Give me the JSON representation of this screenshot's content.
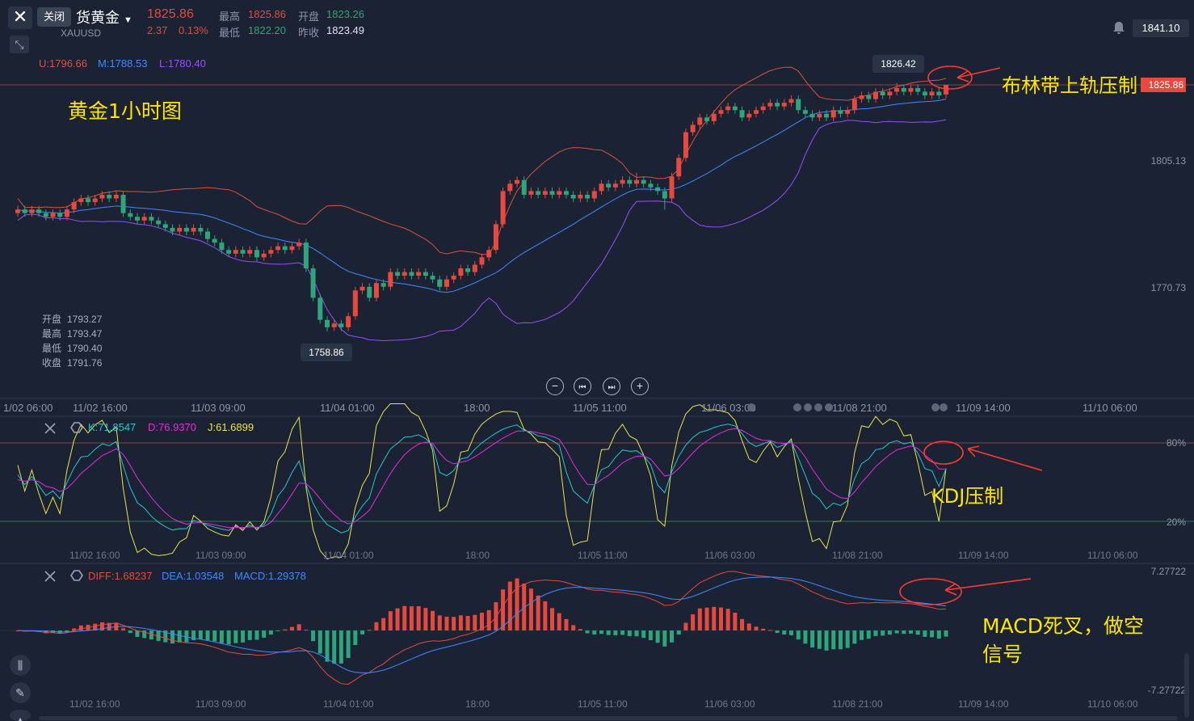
{
  "header": {
    "close_label": "关闭",
    "title": "货黄金",
    "symbol": "XAUUSD",
    "price": "1825.86",
    "change": "2.37",
    "change_pct": "0.13%",
    "high_label": "最高",
    "high": "1825.86",
    "low_label": "最低",
    "low": "1822.20",
    "open_label": "开盘",
    "open": "1823.26",
    "prev_label": "昨收",
    "prev": "1823.49",
    "right_price": "1841.10"
  },
  "boll": {
    "u": "U:1796.66",
    "m": "M:1788.53",
    "l": "L:1780.40"
  },
  "ohlc": {
    "open_label": "开盘",
    "open": "1793.27",
    "high_label": "最高",
    "high": "1793.47",
    "low_label": "最低",
    "low": "1790.40",
    "close_label": "收盘",
    "close": "1791.76"
  },
  "kdj": {
    "k": "K:71.8547",
    "d": "D:76.9370",
    "j": "J:61.6899"
  },
  "macd": {
    "diff": "DIFF:1.68237",
    "dea": "DEA:1.03548",
    "macd": "MACD:1.29378"
  },
  "annotations": {
    "chart_title": "黄金1小时图",
    "boll_note": "布林带上轨压制",
    "kdj_note": "KDJ压制",
    "macd_note_1": "MACD死叉，做空",
    "macd_note_2": "信号"
  },
  "colors": {
    "bg": "#1b2233",
    "up": "#e8493e",
    "down": "#2ea57a",
    "upper": "#d9533f",
    "mid": "#3d8bff",
    "lower": "#9b4dff",
    "k": "#20c7d4",
    "d": "#e02ee0",
    "j": "#e9e34a",
    "annotation": "#ffe600",
    "arrow": "#ff3b30",
    "diff": "#e8493e",
    "dea": "#3d8bff"
  },
  "chart_data": [
    {
      "type": "candlestick",
      "title": "黄金1小时图",
      "series_names": [
        "U",
        "M",
        "L"
      ],
      "y_ticks": [
        1805.13,
        1770.73
      ],
      "current_price": 1825.86,
      "max_label": 1826.42,
      "min_label": 1758.86,
      "x_ticks": [
        "1/02 06:00",
        "11/02 16:00",
        "11/03 09:00",
        "11/04 01:00",
        "18:00",
        "11/05 11:00",
        "11/06 03:00",
        "11/08 21:00",
        "11/09 14:00",
        "11/10 06:00"
      ],
      "candles": [
        [
          1791,
          1792,
          1790,
          1793
        ],
        [
          1792,
          1791,
          1790,
          1793
        ],
        [
          1791,
          1792,
          1790,
          1793
        ],
        [
          1792,
          1791,
          1790,
          1793
        ],
        [
          1791,
          1790,
          1789,
          1792
        ],
        [
          1790,
          1791,
          1789,
          1792
        ],
        [
          1791,
          1790,
          1789,
          1792
        ],
        [
          1790,
          1792,
          1789,
          1793
        ],
        [
          1792,
          1794,
          1791,
          1795
        ],
        [
          1794,
          1795,
          1793,
          1796
        ],
        [
          1795,
          1794,
          1793,
          1796
        ],
        [
          1794,
          1795,
          1793,
          1796
        ],
        [
          1795,
          1796,
          1794,
          1797
        ],
        [
          1796,
          1795,
          1794,
          1797
        ],
        [
          1795,
          1796,
          1794,
          1797
        ],
        [
          1796,
          1791,
          1790,
          1797
        ],
        [
          1791,
          1790,
          1789,
          1792
        ],
        [
          1790,
          1789,
          1788,
          1791
        ],
        [
          1789,
          1790,
          1788,
          1791
        ],
        [
          1790,
          1789,
          1788,
          1791
        ],
        [
          1789,
          1788,
          1787,
          1790
        ],
        [
          1788,
          1787,
          1786,
          1789
        ],
        [
          1787,
          1786,
          1785,
          1788
        ],
        [
          1786,
          1787,
          1785,
          1788
        ],
        [
          1787,
          1786,
          1785,
          1788
        ],
        [
          1786,
          1787,
          1785,
          1788
        ],
        [
          1787,
          1786,
          1785,
          1788
        ],
        [
          1786,
          1784,
          1783,
          1787
        ],
        [
          1784,
          1783,
          1782,
          1785
        ],
        [
          1783,
          1781,
          1780,
          1784
        ],
        [
          1781,
          1780,
          1779,
          1782
        ],
        [
          1780,
          1781,
          1779,
          1782
        ],
        [
          1781,
          1780,
          1779,
          1782
        ],
        [
          1780,
          1781,
          1779,
          1782
        ],
        [
          1781,
          1779,
          1778,
          1782
        ],
        [
          1779,
          1780,
          1778,
          1781
        ],
        [
          1780,
          1781,
          1779,
          1782
        ],
        [
          1781,
          1782,
          1780,
          1783
        ],
        [
          1782,
          1781,
          1780,
          1783
        ],
        [
          1781,
          1782,
          1780,
          1783
        ],
        [
          1782,
          1783,
          1781,
          1784
        ],
        [
          1783,
          1776,
          1775,
          1784
        ],
        [
          1776,
          1768,
          1767,
          1777
        ],
        [
          1768,
          1762,
          1761,
          1769
        ],
        [
          1762,
          1760,
          1758.86,
          1763
        ],
        [
          1760,
          1761,
          1759,
          1762
        ],
        [
          1761,
          1760,
          1759,
          1762
        ],
        [
          1760,
          1763,
          1759,
          1764
        ],
        [
          1763,
          1770,
          1762,
          1771
        ],
        [
          1770,
          1771,
          1769,
          1772
        ],
        [
          1771,
          1768,
          1767,
          1772
        ],
        [
          1768,
          1772,
          1767,
          1773
        ],
        [
          1772,
          1771,
          1770,
          1773
        ],
        [
          1771,
          1775,
          1770,
          1776
        ],
        [
          1775,
          1774,
          1773,
          1776
        ],
        [
          1774,
          1775,
          1773,
          1776
        ],
        [
          1775,
          1774,
          1773,
          1776
        ],
        [
          1774,
          1775,
          1773,
          1776
        ],
        [
          1775,
          1774,
          1773,
          1776
        ],
        [
          1774,
          1773,
          1772,
          1775
        ],
        [
          1773,
          1771,
          1770,
          1774
        ],
        [
          1771,
          1773,
          1770,
          1774
        ],
        [
          1773,
          1774,
          1772,
          1775
        ],
        [
          1774,
          1776,
          1773,
          1777
        ],
        [
          1776,
          1775,
          1774,
          1777
        ],
        [
          1775,
          1777,
          1774,
          1778
        ],
        [
          1777,
          1779,
          1776,
          1780
        ],
        [
          1779,
          1781,
          1778,
          1782
        ],
        [
          1781,
          1788,
          1780,
          1789
        ],
        [
          1788,
          1797,
          1787,
          1798
        ],
        [
          1797,
          1799,
          1796,
          1800
        ],
        [
          1799,
          1800,
          1798,
          1801
        ],
        [
          1800,
          1796,
          1795,
          1801
        ],
        [
          1796,
          1797,
          1795,
          1798
        ],
        [
          1797,
          1796,
          1795,
          1798
        ],
        [
          1796,
          1797,
          1795,
          1798
        ],
        [
          1797,
          1796,
          1795,
          1798
        ],
        [
          1796,
          1797,
          1795,
          1798
        ],
        [
          1797,
          1796,
          1795,
          1798
        ],
        [
          1796,
          1795,
          1794,
          1797
        ],
        [
          1795,
          1796,
          1794,
          1797
        ],
        [
          1796,
          1795,
          1794,
          1797
        ],
        [
          1795,
          1797,
          1794,
          1798
        ],
        [
          1797,
          1799,
          1796,
          1800
        ],
        [
          1799,
          1798,
          1797,
          1800
        ],
        [
          1798,
          1799,
          1797,
          1800
        ],
        [
          1799,
          1800,
          1798,
          1801
        ],
        [
          1800,
          1799,
          1798,
          1801
        ],
        [
          1799,
          1800,
          1798,
          1802
        ],
        [
          1800,
          1799,
          1798,
          1801
        ],
        [
          1799,
          1798,
          1797,
          1800
        ],
        [
          1798,
          1797,
          1796,
          1799
        ],
        [
          1797,
          1795,
          1792,
          1798
        ],
        [
          1795,
          1801,
          1794,
          1802
        ],
        [
          1801,
          1806,
          1800,
          1807
        ],
        [
          1806,
          1813,
          1805,
          1814
        ],
        [
          1813,
          1815,
          1812,
          1816
        ],
        [
          1815,
          1817,
          1814,
          1818
        ],
        [
          1817,
          1816,
          1815,
          1818
        ],
        [
          1816,
          1818,
          1815,
          1819
        ],
        [
          1818,
          1819,
          1817,
          1820
        ],
        [
          1819,
          1820,
          1818,
          1821
        ],
        [
          1820,
          1819,
          1818,
          1821
        ],
        [
          1819,
          1817,
          1816,
          1820
        ],
        [
          1817,
          1818,
          1816,
          1819
        ],
        [
          1818,
          1819,
          1817,
          1820
        ],
        [
          1819,
          1820,
          1818,
          1821
        ],
        [
          1820,
          1821,
          1819,
          1822
        ],
        [
          1821,
          1820,
          1819,
          1822
        ],
        [
          1820,
          1821,
          1819,
          1822
        ],
        [
          1821,
          1822,
          1820,
          1823
        ],
        [
          1822,
          1819,
          1818,
          1823
        ],
        [
          1819,
          1818,
          1817,
          1820
        ],
        [
          1818,
          1817,
          1816,
          1819
        ],
        [
          1817,
          1818,
          1816,
          1819
        ],
        [
          1818,
          1817,
          1816,
          1819
        ],
        [
          1817,
          1819,
          1816,
          1820
        ],
        [
          1819,
          1818,
          1817,
          1820
        ],
        [
          1818,
          1819,
          1817,
          1820
        ],
        [
          1819,
          1822,
          1818,
          1823
        ],
        [
          1822,
          1823,
          1821,
          1824
        ],
        [
          1823,
          1822,
          1821,
          1824
        ],
        [
          1822,
          1824,
          1821,
          1825
        ],
        [
          1824,
          1823,
          1822,
          1825
        ],
        [
          1823,
          1824,
          1822,
          1825
        ],
        [
          1824,
          1825,
          1823,
          1826.42
        ],
        [
          1825,
          1824,
          1823,
          1826
        ],
        [
          1824,
          1825,
          1823,
          1826
        ],
        [
          1825,
          1824,
          1823,
          1826
        ],
        [
          1824,
          1823,
          1822,
          1825
        ],
        [
          1823,
          1824,
          1822,
          1825
        ],
        [
          1824,
          1823,
          1822,
          1825
        ],
        [
          1823.26,
          1825.86,
          1822.2,
          1825.86
        ]
      ]
    },
    {
      "type": "line",
      "title": "KDJ",
      "series_names": [
        "K",
        "D",
        "J"
      ],
      "y_ticks": [
        "80%",
        "20%"
      ],
      "last": {
        "K": 71.8547,
        "D": 76.937,
        "J": 61.6899
      }
    },
    {
      "type": "bar",
      "title": "MACD",
      "series_names": [
        "DIFF",
        "DEA",
        "MACD"
      ],
      "y_ticks": [
        "7.27722",
        "-7.27722"
      ],
      "last": {
        "DIFF": 1.68237,
        "DEA": 1.03548,
        "MACD": 1.29378
      }
    }
  ]
}
